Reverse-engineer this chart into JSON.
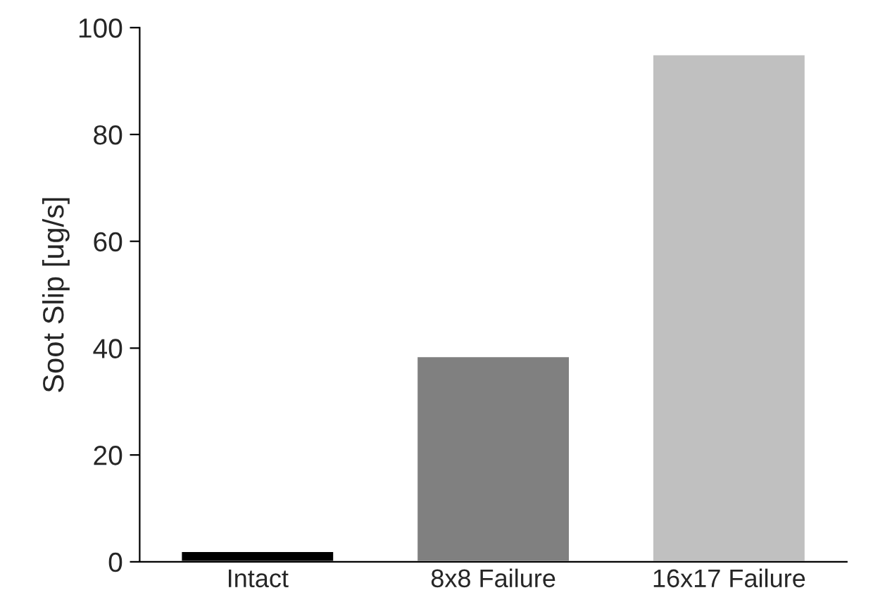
{
  "chart_data": {
    "type": "bar",
    "ylabel": "Soot Slip [ug/s]",
    "categories": [
      "Intact",
      "8x8 Failure",
      "16x17 Failure"
    ],
    "values": [
      2,
      38.5,
      95
    ],
    "colors": [
      "#000000",
      "#808080",
      "#c0c0c0"
    ],
    "ylim": [
      0,
      100
    ],
    "yticks": [
      0,
      20,
      40,
      60,
      80,
      100
    ],
    "grid": false,
    "legend": false
  }
}
